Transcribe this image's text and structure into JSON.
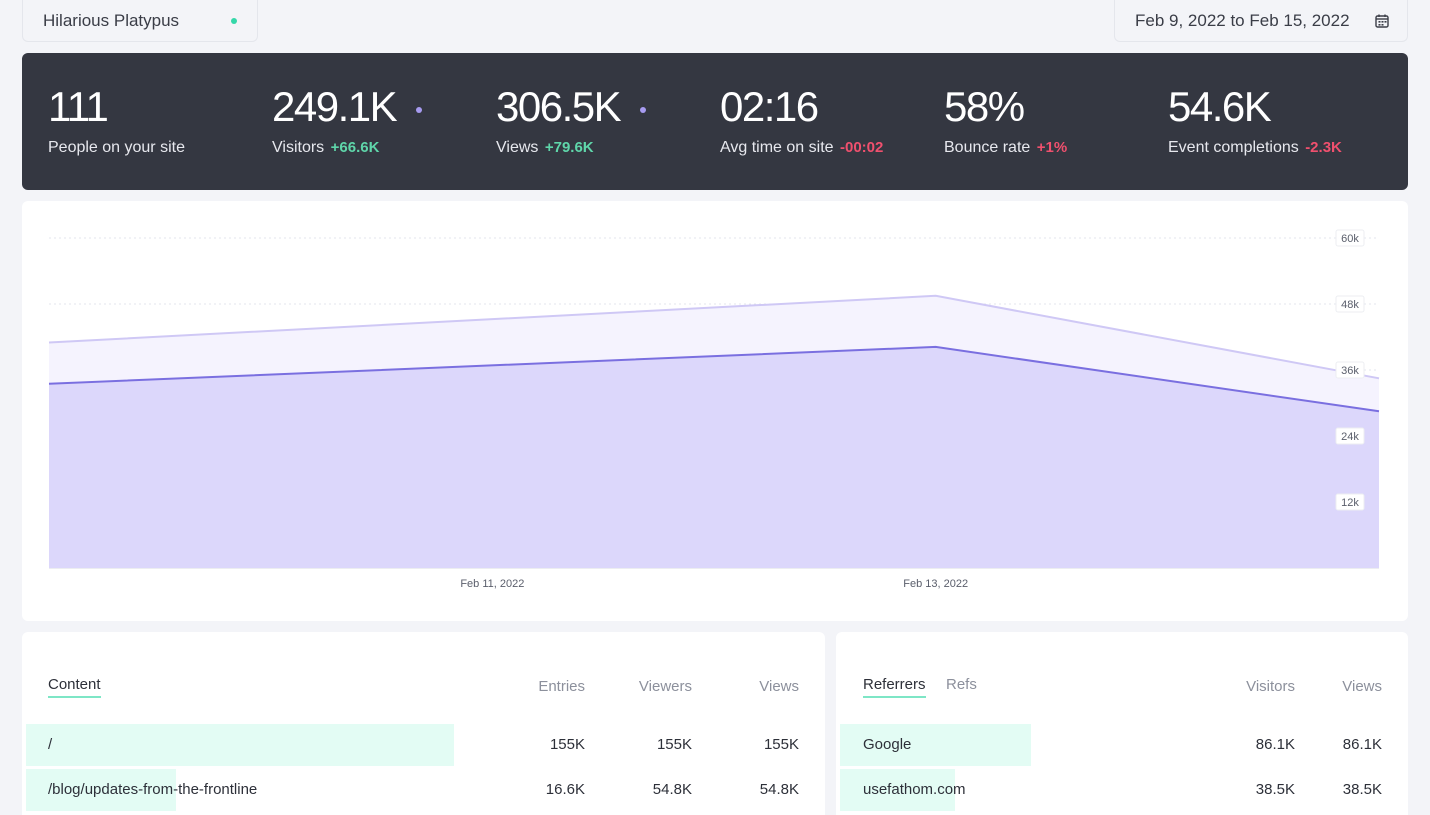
{
  "site": {
    "name": "Hilarious Platypus",
    "live_color": "#34d7a9"
  },
  "date_range": {
    "label": "Feb 9, 2022 to Feb 15, 2022",
    "icon": "calendar-icon"
  },
  "stats": [
    {
      "value": "111",
      "label": "People on your site",
      "delta": "",
      "delta_dir": "",
      "dot": false
    },
    {
      "value": "249.1K",
      "label": "Visitors",
      "delta": "+66.6K",
      "delta_dir": "up",
      "dot": true
    },
    {
      "value": "306.5K",
      "label": "Views",
      "delta": "+79.6K",
      "delta_dir": "up",
      "dot": true
    },
    {
      "value": "02:16",
      "label": "Avg time on site",
      "delta": "-00:02",
      "delta_dir": "down",
      "dot": false
    },
    {
      "value": "58%",
      "label": "Bounce rate",
      "delta": "+1%",
      "delta_dir": "down",
      "dot": false
    },
    {
      "value": "54.6K",
      "label": "Event completions",
      "delta": "-2.3K",
      "delta_dir": "down",
      "dot": false
    }
  ],
  "colors": {
    "visitors": "#7a6fe0",
    "views": "#cfc8f5",
    "positive": "#5fd6aa",
    "negative": "#f0506e"
  },
  "chart_data": {
    "type": "area",
    "x": [
      "Feb 9, 2022",
      "Feb 13, 2022",
      "Feb 15, 2022"
    ],
    "series": [
      {
        "name": "Views",
        "values": [
          41000,
          49500,
          34500
        ]
      },
      {
        "name": "Visitors",
        "values": [
          33500,
          40200,
          28500
        ]
      }
    ],
    "x_ticks": [
      {
        "date": "Feb 11, 2022",
        "label": "Feb 11, 2022"
      },
      {
        "date": "Feb 13, 2022",
        "label": "Feb 13, 2022"
      }
    ],
    "x_range": [
      "Feb 9, 2022",
      "Feb 15, 2022"
    ],
    "y_ticks": [
      {
        "value": 60000,
        "label": "60k"
      },
      {
        "value": 48000,
        "label": "48k"
      },
      {
        "value": 36000,
        "label": "36k"
      },
      {
        "value": 24000,
        "label": "24k"
      },
      {
        "value": 12000,
        "label": "12k"
      }
    ],
    "ylim": [
      0,
      60000
    ],
    "grid": true
  },
  "content": {
    "tab": "Content",
    "columns": [
      "Entries",
      "Viewers",
      "Views"
    ],
    "rows": [
      {
        "label": "/",
        "entries": "155K",
        "viewers": "155K",
        "views": "155K",
        "share": 1.0
      },
      {
        "label": "/blog/updates-from-the-frontline",
        "entries": "16.6K",
        "viewers": "54.8K",
        "views": "54.8K",
        "share": 0.35
      }
    ]
  },
  "referrers": {
    "tabs": [
      "Referrers",
      "Refs"
    ],
    "columns": [
      "Visitors",
      "Views"
    ],
    "rows": [
      {
        "label": "Google",
        "visitors": "86.1K",
        "views": "86.1K",
        "share": 1.0
      },
      {
        "label": "usefathom.com",
        "visitors": "38.5K",
        "views": "38.5K",
        "share": 0.6
      }
    ]
  }
}
